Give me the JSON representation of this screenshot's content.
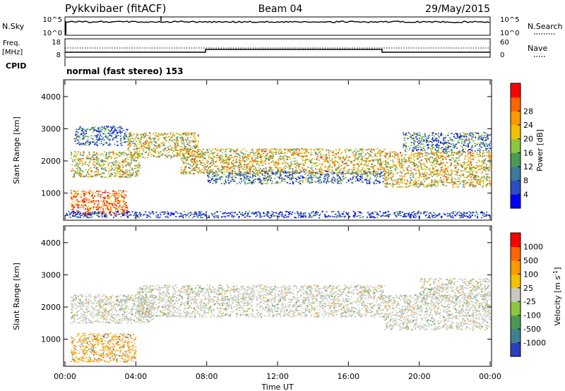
{
  "header": {
    "radar": "Pykkvibaer (fitACF)",
    "beam": "Beam 04",
    "date": "29/May/2015"
  },
  "top_panels": {
    "nsky_label": "N.Sky",
    "nsky_ticks": [
      "10^5",
      "10^0"
    ],
    "nsearch_label": "N.Search",
    "nsearch_ticks": [
      "10^5",
      "10^0"
    ],
    "freq_label_1": "Freq.",
    "freq_label_2": "[MHz]",
    "freq_ticks": [
      "18",
      "8"
    ],
    "nave_label": "Nave",
    "nave_ticks": [
      "60",
      "0"
    ],
    "cpid_label": "CPID",
    "cpid_text": "normal (fast stereo) 153"
  },
  "chart_data": [
    {
      "type": "heatmap",
      "name": "power",
      "ylabel": "Slant Range [km]",
      "ylim": [
        180,
        4500
      ],
      "yticks": [
        1000,
        2000,
        3000,
        4000
      ],
      "xlim": [
        0,
        24
      ],
      "colorbar": {
        "label": "Power [dB]",
        "range": [
          0,
          32
        ],
        "ticks": [
          4,
          8,
          12,
          16,
          20,
          24,
          28
        ],
        "colors": [
          "#0000ff",
          "#2b4fbf",
          "#3c7a99",
          "#4a9a55",
          "#8dc63f",
          "#f2c200",
          "#ff9900",
          "#ff6600",
          "#ff0000"
        ]
      },
      "bands": [
        {
          "from": 0.3,
          "to": 3.5,
          "lo": 300,
          "hi": 1100,
          "level": 0.8
        },
        {
          "from": 0.3,
          "to": 4.2,
          "lo": 1500,
          "hi": 2300,
          "level": 0.55
        },
        {
          "from": 0.5,
          "to": 3.5,
          "lo": 2500,
          "hi": 3100,
          "level": 0.25
        },
        {
          "from": 3.5,
          "to": 7.5,
          "lo": 2100,
          "hi": 2900,
          "level": 0.55
        },
        {
          "from": 6.5,
          "to": 18.0,
          "lo": 1600,
          "hi": 2400,
          "level": 0.6
        },
        {
          "from": 8.0,
          "to": 18.0,
          "lo": 1300,
          "hi": 1700,
          "level": 0.3
        },
        {
          "from": 18.0,
          "to": 24.0,
          "lo": 1200,
          "hi": 2300,
          "level": 0.6
        },
        {
          "from": 19.0,
          "to": 24.0,
          "lo": 2300,
          "hi": 2900,
          "level": 0.3
        },
        {
          "from": 0.0,
          "to": 24.0,
          "lo": 250,
          "hi": 450,
          "level": 0.15
        }
      ]
    },
    {
      "type": "heatmap",
      "name": "velocity",
      "ylabel": "Slant Range [km]",
      "xlabel": "Time UT",
      "ylim": [
        180,
        4500
      ],
      "yticks": [
        1000,
        2000,
        3000,
        4000
      ],
      "xlim": [
        0,
        24
      ],
      "xticks": [
        "00:00",
        "04:00",
        "08:00",
        "12:00",
        "16:00",
        "20:00",
        "00:00"
      ],
      "colorbar": {
        "label": "Velocity [m s^-1]",
        "ticks": [
          "1000",
          "500",
          "100",
          "25",
          "-25",
          "-100",
          "-500",
          "-1000"
        ],
        "colors": [
          "#2b3fbf",
          "#3f7f8f",
          "#4a9a55",
          "#8dc63f",
          "#c8c8c0",
          "#f2c200",
          "#ff9900",
          "#ff6600",
          "#ff0000"
        ]
      },
      "bands": [
        {
          "from": 0.3,
          "to": 4.0,
          "lo": 300,
          "hi": 1200,
          "level": 0.8
        },
        {
          "from": 0.3,
          "to": 5.0,
          "lo": 1500,
          "hi": 2400,
          "level": 0.4
        },
        {
          "from": 4.0,
          "to": 18.0,
          "lo": 1700,
          "hi": 2700,
          "level": 0.45
        },
        {
          "from": 18.0,
          "to": 24.0,
          "lo": 1300,
          "hi": 2400,
          "level": 0.45
        },
        {
          "from": 20.0,
          "to": 24.0,
          "lo": 2300,
          "hi": 2900,
          "level": 0.45
        }
      ]
    }
  ]
}
